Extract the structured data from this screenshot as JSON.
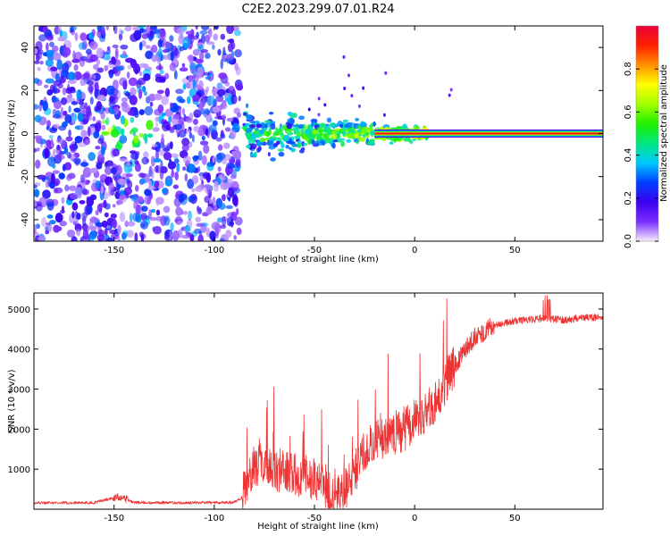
{
  "figure": {
    "title": "C2E2.2023.299.07.01.R24"
  },
  "chart_data": [
    {
      "type": "heatmap",
      "xlabel": "Height of straight line (km)",
      "ylabel": "Frequency (Hz)",
      "xlim": [
        -190,
        94
      ],
      "ylim": [
        -50,
        50
      ],
      "xticks": [
        -150,
        -100,
        -50,
        0,
        50
      ],
      "yticks": [
        -40,
        -20,
        0,
        20,
        40
      ],
      "colorbar": {
        "label": "Normalized spectral amplitude",
        "range": [
          0.0,
          1.0
        ],
        "ticks": [
          0.0,
          0.2,
          0.4,
          0.6,
          0.8
        ],
        "colormap": [
          "#f8eefc",
          "#7a2cff",
          "#3a00f0",
          "#0040ff",
          "#00c8ff",
          "#00e880",
          "#20f000",
          "#a0ff00",
          "#ffff00",
          "#ff9000",
          "#ff2000",
          "#e8003a"
        ]
      },
      "features": [
        {
          "x_range": [
            -190,
            -87
          ],
          "description_level": 0.1
        },
        {
          "x_range": [
            -85,
            7
          ],
          "center_freq": 0,
          "level": 0.35
        },
        {
          "x_range": [
            -20,
            94
          ],
          "center_freq": 0,
          "level": 0.95
        }
      ]
    },
    {
      "type": "line",
      "xlabel": "Height of straight line (km)",
      "ylabel": "SNR (10 * v/v)",
      "xlim": [
        -190,
        94
      ],
      "ylim": [
        0,
        5400
      ],
      "xticks": [
        -150,
        -100,
        -50,
        0,
        50
      ],
      "yticks": [
        1000,
        2000,
        3000,
        4000,
        5000
      ],
      "series": [
        {
          "color": "#ee3333",
          "x": [
            -190,
            -160,
            -148,
            -140,
            -120,
            -90,
            -86,
            -84,
            -80,
            -70,
            -60,
            -50,
            -45,
            -40,
            -35,
            -30,
            -25,
            -20,
            -15,
            -10,
            -5,
            0,
            5,
            10,
            15,
            20,
            25,
            30,
            35,
            40,
            45,
            50,
            55,
            60,
            65,
            70,
            75,
            80,
            85,
            94
          ],
          "y": [
            160,
            160,
            320,
            170,
            160,
            170,
            300,
            700,
            1100,
            1000,
            900,
            750,
            500,
            250,
            400,
            900,
            1500,
            1700,
            1800,
            1900,
            2000,
            2200,
            2400,
            2700,
            3100,
            3600,
            4000,
            4300,
            4450,
            4600,
            4650,
            4700,
            4720,
            4750,
            4780,
            4750,
            4720,
            4760,
            4780,
            4800
          ]
        }
      ]
    }
  ]
}
